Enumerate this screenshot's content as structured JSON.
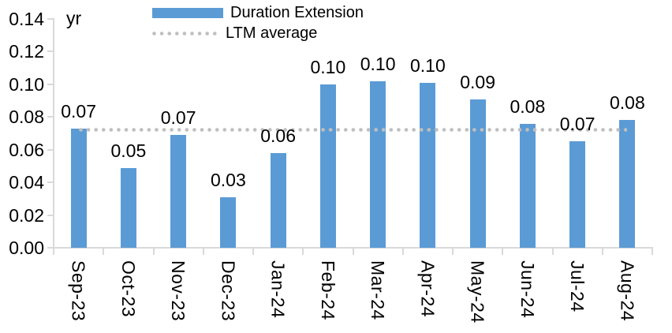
{
  "chart_data": {
    "type": "bar",
    "title": "",
    "ylabel": "yr",
    "xlabel": "",
    "categories": [
      "Sep-23",
      "Oct-23",
      "Nov-23",
      "Dec-23",
      "Jan-24",
      "Feb-24",
      "Mar-24",
      "Apr-24",
      "May-24",
      "Jun-24",
      "Jul-24",
      "Aug-24"
    ],
    "series": [
      {
        "name": "Duration Extension",
        "type": "bar",
        "color": "#5B9BD5",
        "values": [
          0.07,
          0.05,
          0.07,
          0.03,
          0.06,
          0.1,
          0.1,
          0.1,
          0.09,
          0.08,
          0.07,
          0.08
        ],
        "bar_heights_precise": [
          0.073,
          0.049,
          0.069,
          0.031,
          0.058,
          0.1,
          0.102,
          0.101,
          0.091,
          0.076,
          0.065,
          0.078
        ],
        "data_labels": [
          "0.07",
          "0.05",
          "0.07",
          "0.03",
          "0.06",
          "0.10",
          "0.10",
          "0.10",
          "0.09",
          "0.08",
          "0.07",
          "0.08"
        ]
      },
      {
        "name": "LTM average",
        "type": "line",
        "style": "dotted",
        "color": "#BFBFBF",
        "value": 0.072
      }
    ],
    "ylim": [
      0,
      0.14
    ],
    "ytick_step": 0.02,
    "ytick_labels": [
      "0.00",
      "0.02",
      "0.04",
      "0.06",
      "0.08",
      "0.10",
      "0.12",
      "0.14"
    ],
    "grid": false,
    "legend_position": "top-center",
    "axis_color": "#D9D9D9",
    "text_color": "#000000",
    "background": "#FFFFFF"
  }
}
